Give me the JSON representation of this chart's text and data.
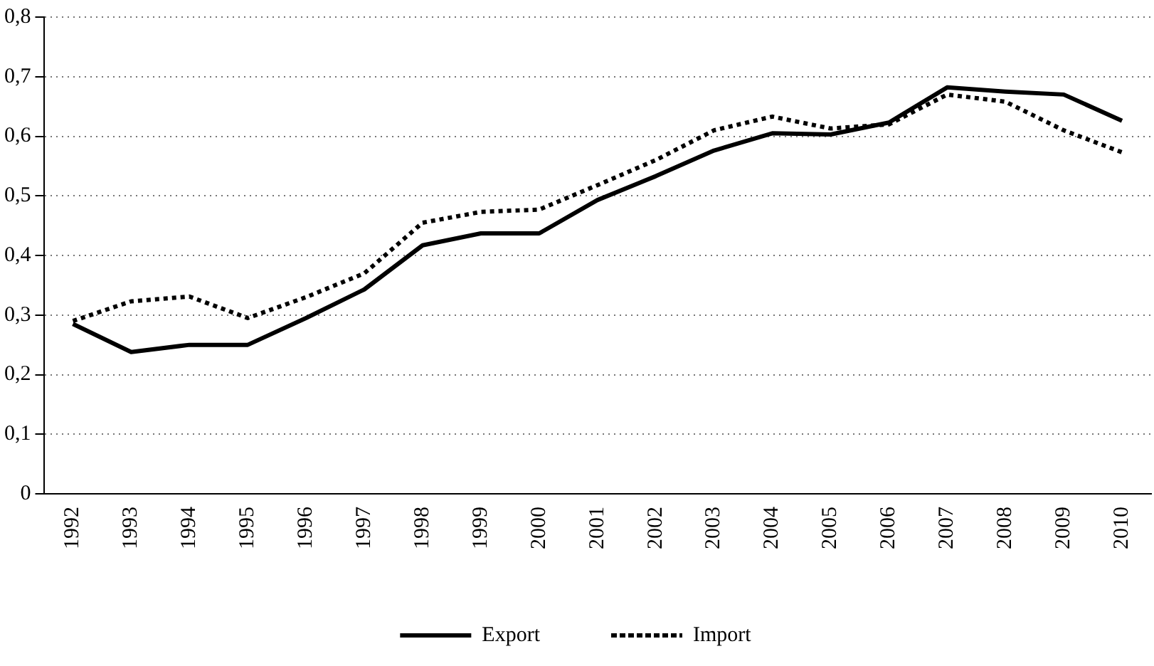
{
  "chart_data": {
    "type": "line",
    "categories": [
      "1992",
      "1993",
      "1994",
      "1995",
      "1996",
      "1997",
      "1998",
      "1999",
      "2000",
      "2001",
      "2002",
      "2003",
      "2004",
      "2005",
      "2006",
      "2007",
      "2008",
      "2009",
      "2010"
    ],
    "series": [
      {
        "name": "Export",
        "color": "#000000",
        "line_style": "solid",
        "values": [
          0.285,
          0.238,
          0.25,
          0.25,
          0.295,
          0.343,
          0.417,
          0.437,
          0.437,
          0.493,
          0.533,
          0.576,
          0.605,
          0.603,
          0.623,
          0.682,
          0.675,
          0.67,
          0.626
        ]
      },
      {
        "name": "Import",
        "color": "#000000",
        "line_style": "dotted",
        "values": [
          0.29,
          0.323,
          0.331,
          0.295,
          0.33,
          0.37,
          0.455,
          0.473,
          0.477,
          0.518,
          0.56,
          0.61,
          0.633,
          0.613,
          0.62,
          0.67,
          0.658,
          0.61,
          0.573
        ]
      }
    ],
    "ylim": [
      0,
      0.8
    ],
    "yticks": [
      {
        "value": 0,
        "label": "0"
      },
      {
        "value": 0.1,
        "label": "0,1"
      },
      {
        "value": 0.2,
        "label": "0,2"
      },
      {
        "value": 0.3,
        "label": "0,3"
      },
      {
        "value": 0.4,
        "label": "0,4"
      },
      {
        "value": 0.5,
        "label": "0,5"
      },
      {
        "value": 0.6,
        "label": "0,6"
      },
      {
        "value": 0.7,
        "label": "0,7"
      },
      {
        "value": 0.8,
        "label": "0,8"
      }
    ],
    "grid": "y",
    "legend": "bottom",
    "marker": "none"
  }
}
